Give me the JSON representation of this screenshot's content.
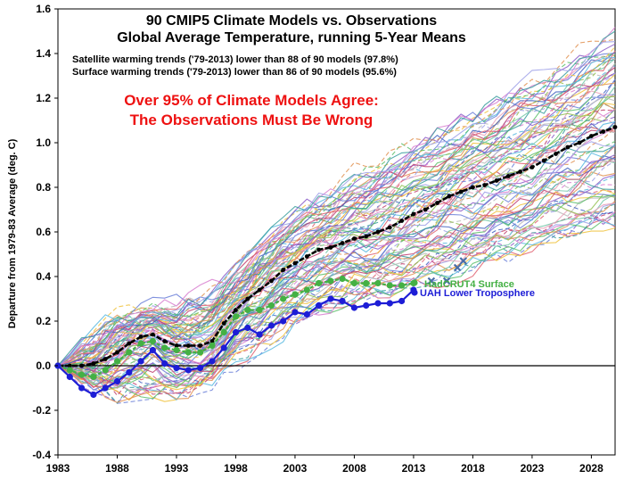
{
  "chart_data": {
    "type": "line",
    "title": "90 CMIP5 Climate Models vs. Observations",
    "subtitle": "Global Average Temperature, running 5-Year Means",
    "notes": [
      "Satellite warming trends ('79-2013) lower than 88 of 90 models (97.8%)",
      "Surface warming trends ('79-2013) lower than 86 of 90 models (95.6%)"
    ],
    "headline": [
      "Over 95% of Climate Models Agree:",
      "The Observations Must Be Wrong"
    ],
    "ylabel": "Departure from 1979-83 Average (deg. C)",
    "xlabel": "",
    "xlim": [
      1983,
      2030
    ],
    "ylim": [
      -0.4,
      1.6
    ],
    "xticks": [
      "1983",
      "1988",
      "1993",
      "1998",
      "2003",
      "2008",
      "2013",
      "2018",
      "2023",
      "2028"
    ],
    "yticks": [
      "1.6",
      "1.4",
      "1.2",
      "1.0",
      "0.8",
      "0.6",
      "0.4",
      "0.2",
      "0.0",
      "-0.2",
      "-0.4"
    ],
    "grid": false,
    "legend_position": "inline-right-of-observations",
    "colors": {
      "model_mean": "#000000",
      "hadcrut4": "#44b044",
      "uah": "#1d1dd6",
      "headline": "#ee1111",
      "recent_obs": "#4a6ea8"
    },
    "model_palette": [
      "#e06070",
      "#6a7fd8",
      "#f0c23c",
      "#58b8e0",
      "#8a5ac8",
      "#5cc06a",
      "#d87fd0",
      "#3a9e9e",
      "#e09050",
      "#9ea0e8",
      "#c04070",
      "#72c8a8",
      "#b8b8b8",
      "#4060c0",
      "#e8a0b8",
      "#90c050"
    ],
    "series": [
      {
        "name": "Model mean",
        "x": [
          1983,
          1984,
          1985,
          1986,
          1987,
          1988,
          1989,
          1990,
          1991,
          1992,
          1993,
          1994,
          1995,
          1996,
          1997,
          1998,
          1999,
          2000,
          2001,
          2002,
          2003,
          2004,
          2005,
          2006,
          2007,
          2008,
          2009,
          2010,
          2011,
          2012,
          2013,
          2014,
          2015,
          2016,
          2017,
          2018,
          2019,
          2020,
          2021,
          2022,
          2023,
          2024,
          2025,
          2026,
          2027,
          2028,
          2029,
          2030
        ],
        "values": [
          0.0,
          0.0,
          0.0,
          0.01,
          0.03,
          0.06,
          0.1,
          0.13,
          0.14,
          0.11,
          0.09,
          0.09,
          0.09,
          0.11,
          0.19,
          0.25,
          0.3,
          0.34,
          0.38,
          0.43,
          0.46,
          0.49,
          0.52,
          0.53,
          0.55,
          0.57,
          0.58,
          0.6,
          0.62,
          0.65,
          0.68,
          0.7,
          0.73,
          0.76,
          0.78,
          0.8,
          0.81,
          0.83,
          0.85,
          0.87,
          0.89,
          0.92,
          0.95,
          0.98,
          1.0,
          1.03,
          1.05,
          1.07
        ]
      },
      {
        "name": "HadCRUT4 Surface",
        "x": [
          1983,
          1984,
          1985,
          1986,
          1987,
          1988,
          1989,
          1990,
          1991,
          1992,
          1993,
          1994,
          1995,
          1996,
          1997,
          1998,
          1999,
          2000,
          2001,
          2002,
          2003,
          2004,
          2005,
          2006,
          2007,
          2008,
          2009,
          2010,
          2011,
          2012,
          2013
        ],
        "values": [
          0.0,
          -0.02,
          -0.04,
          -0.05,
          -0.02,
          0.02,
          0.06,
          0.1,
          0.11,
          0.08,
          0.07,
          0.06,
          0.06,
          0.09,
          0.15,
          0.22,
          0.25,
          0.25,
          0.27,
          0.3,
          0.32,
          0.34,
          0.37,
          0.38,
          0.39,
          0.37,
          0.37,
          0.37,
          0.36,
          0.36,
          0.37
        ]
      },
      {
        "name": "UAH Lower Troposphere",
        "x": [
          1983,
          1984,
          1985,
          1986,
          1987,
          1988,
          1989,
          1990,
          1991,
          1992,
          1993,
          1994,
          1995,
          1996,
          1997,
          1998,
          1999,
          2000,
          2001,
          2002,
          2003,
          2004,
          2005,
          2006,
          2007,
          2008,
          2009,
          2010,
          2011,
          2012,
          2013
        ],
        "values": [
          0.0,
          -0.05,
          -0.1,
          -0.13,
          -0.1,
          -0.07,
          -0.03,
          0.02,
          0.07,
          0.01,
          -0.01,
          -0.02,
          -0.01,
          0.02,
          0.08,
          0.15,
          0.17,
          0.14,
          0.18,
          0.2,
          0.24,
          0.23,
          0.27,
          0.3,
          0.29,
          0.26,
          0.27,
          0.28,
          0.28,
          0.29,
          0.34
        ]
      },
      {
        "name": "Recent observations (x markers)",
        "x": [
          2014.5,
          2015.8,
          2016.7,
          2017.2
        ],
        "values": [
          0.38,
          0.38,
          0.44,
          0.47
        ]
      }
    ],
    "model_ensemble": {
      "count": 90,
      "upper_envelope": {
        "x": [
          1983,
          1988,
          1993,
          1998,
          2003,
          2008,
          2013,
          2018,
          2023,
          2028,
          2030
        ],
        "values": [
          0.0,
          0.25,
          0.3,
          0.45,
          0.7,
          0.9,
          1.05,
          1.2,
          1.35,
          1.5,
          1.58
        ]
      },
      "lower_envelope": {
        "x": [
          1983,
          1988,
          1993,
          1998,
          2003,
          2008,
          2013,
          2018,
          2023,
          2028,
          2030
        ],
        "values": [
          0.0,
          -0.2,
          -0.18,
          -0.02,
          0.15,
          0.25,
          0.3,
          0.35,
          0.45,
          0.52,
          0.55
        ]
      }
    }
  }
}
